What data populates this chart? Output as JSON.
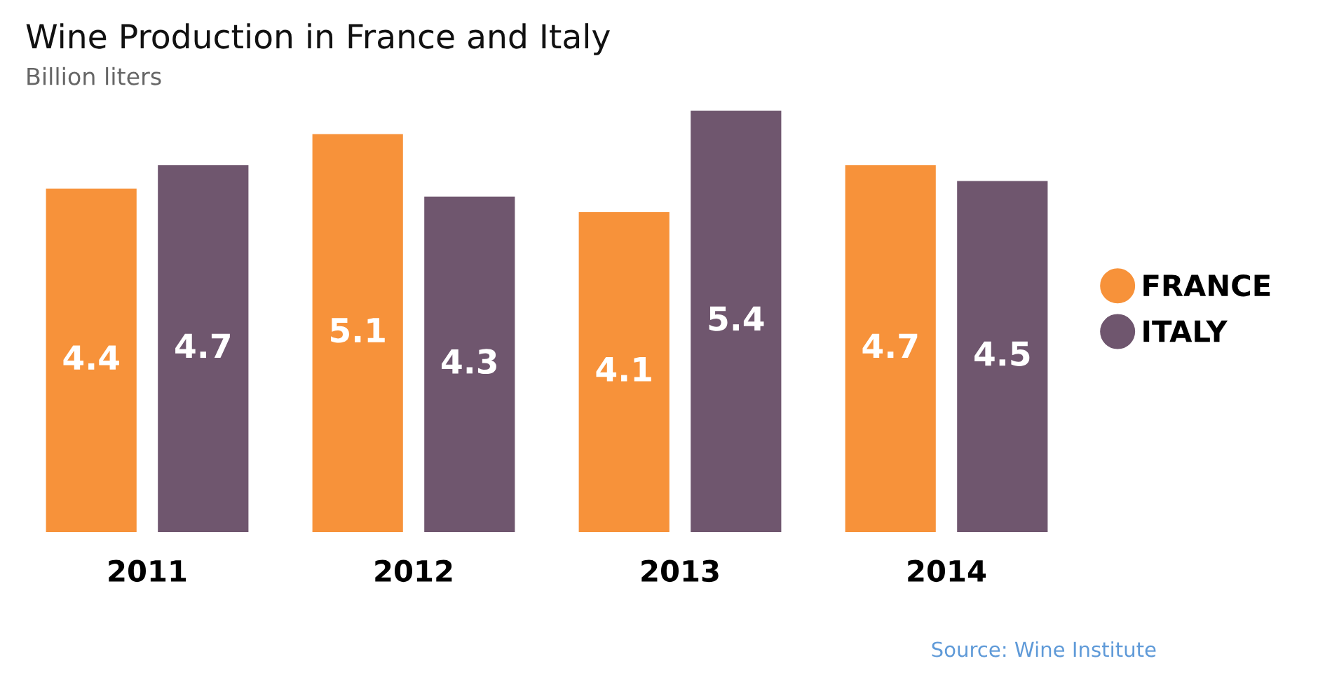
{
  "chart_data": {
    "type": "bar",
    "title": "Wine Production in France and Italy",
    "subtitle": "Billion liters",
    "categories": [
      "2011",
      "2012",
      "2013",
      "2014"
    ],
    "series": [
      {
        "name": "FRANCE",
        "color": "#f7923a",
        "values": [
          4.4,
          5.1,
          4.1,
          4.7
        ]
      },
      {
        "name": "ITALY",
        "color": "#6f566e",
        "values": [
          4.7,
          4.3,
          5.4,
          4.5
        ]
      }
    ],
    "data_labels": true,
    "legend": "right",
    "annotations": [
      "Source: Wine Institute"
    ]
  }
}
